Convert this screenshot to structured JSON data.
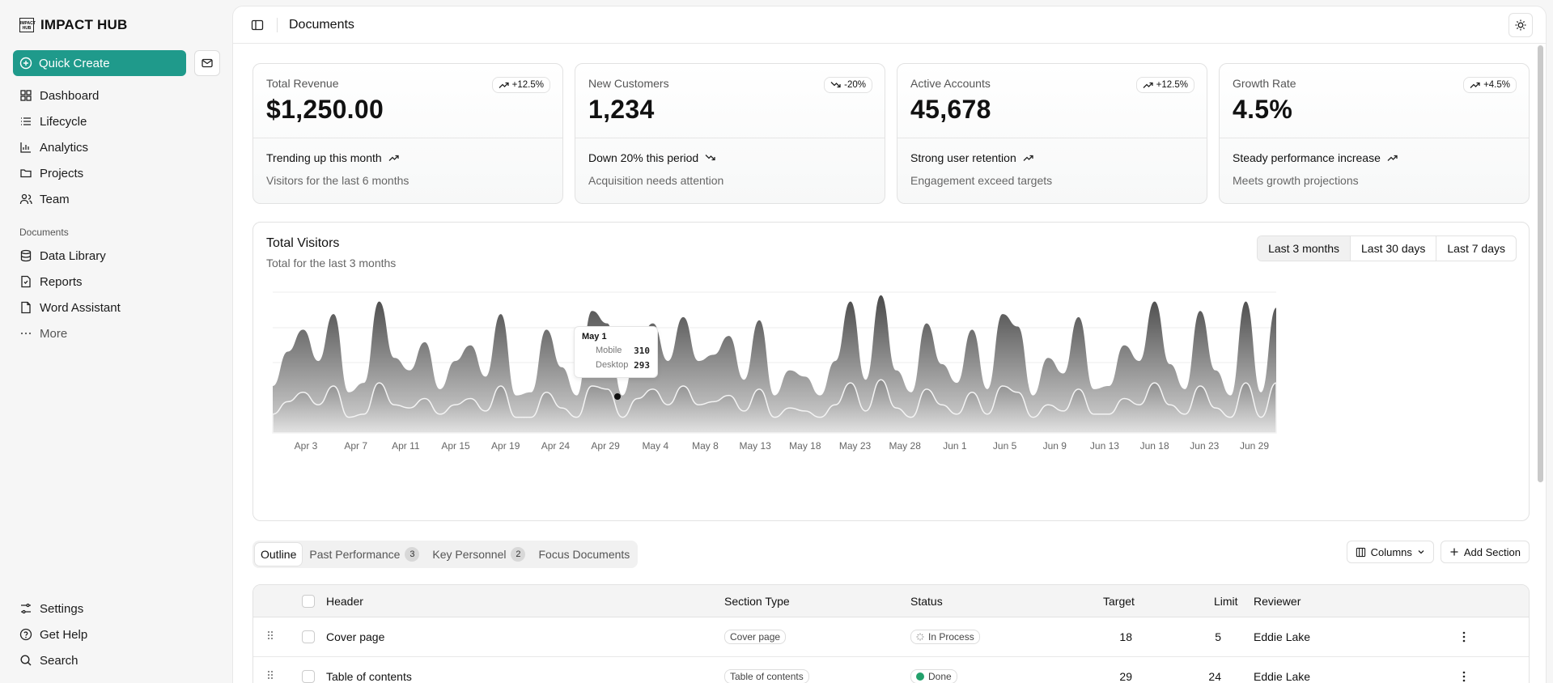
{
  "brand": {
    "name": "IMPACT HUB",
    "logo_text": "IMPACT HUB"
  },
  "sidebar": {
    "quick_create": "Quick Create",
    "items": [
      {
        "label": "Dashboard",
        "icon": "dashboard-icon"
      },
      {
        "label": "Lifecycle",
        "icon": "list-icon"
      },
      {
        "label": "Analytics",
        "icon": "chart-icon"
      },
      {
        "label": "Projects",
        "icon": "folder-icon"
      },
      {
        "label": "Team",
        "icon": "users-icon"
      }
    ],
    "documents_label": "Documents",
    "doc_items": [
      {
        "label": "Data Library",
        "icon": "database-icon"
      },
      {
        "label": "Reports",
        "icon": "report-icon"
      },
      {
        "label": "Word Assistant",
        "icon": "file-icon"
      },
      {
        "label": "More",
        "icon": "ellipsis-icon"
      }
    ],
    "bottom_items": [
      {
        "label": "Settings",
        "icon": "settings-icon"
      },
      {
        "label": "Get Help",
        "icon": "help-icon"
      },
      {
        "label": "Search",
        "icon": "search-icon"
      }
    ]
  },
  "header": {
    "title": "Documents"
  },
  "cards": [
    {
      "label": "Total Revenue",
      "value": "$1,250.00",
      "badge": "+12.5%",
      "trend": "up",
      "line1": "Trending up this month",
      "line2": "Visitors for the last 6 months"
    },
    {
      "label": "New Customers",
      "value": "1,234",
      "badge": "-20%",
      "trend": "down",
      "line1": "Down 20% this period",
      "line2": "Acquisition needs attention"
    },
    {
      "label": "Active Accounts",
      "value": "45,678",
      "badge": "+12.5%",
      "trend": "up",
      "line1": "Strong user retention",
      "line2": "Engagement exceed targets"
    },
    {
      "label": "Growth Rate",
      "value": "4.5%",
      "badge": "+4.5%",
      "trend": "up",
      "line1": "Steady performance increase",
      "line2": "Meets growth projections"
    }
  ],
  "chart": {
    "title": "Total Visitors",
    "subtitle": "Total for the last 3 months",
    "ranges": [
      "Last 3 months",
      "Last 30 days",
      "Last 7 days"
    ],
    "selected_range": "Last 3 months",
    "tooltip": {
      "date": "May 1",
      "mobile_label": "Mobile",
      "mobile_value": "310",
      "desktop_label": "Desktop",
      "desktop_value": "293"
    }
  },
  "chart_data": {
    "type": "area",
    "x_ticks": [
      "Apr 3",
      "Apr 7",
      "Apr 11",
      "Apr 15",
      "Apr 19",
      "Apr 24",
      "Apr 29",
      "May 4",
      "May 8",
      "May 13",
      "May 18",
      "May 23",
      "May 28",
      "Jun 1",
      "Jun 5",
      "Jun 9",
      "Jun 13",
      "Jun 18",
      "Jun 23",
      "Jun 29"
    ],
    "series": [
      {
        "name": "Desktop",
        "values": [
          150,
          260,
          330,
          230,
          380,
          130,
          160,
          420,
          240,
          200,
          290,
          140,
          230,
          280,
          180,
          380,
          120,
          130,
          330,
          210,
          120,
          390,
          350,
          120,
          280,
          350,
          230,
          370,
          230,
          250,
          310,
          170,
          360,
          120,
          200,
          180,
          120,
          230,
          420,
          170,
          440,
          200,
          130,
          350,
          220,
          160,
          330,
          140,
          380,
          340,
          120,
          240,
          190,
          370,
          140,
          150,
          280,
          230,
          420,
          220,
          140,
          390,
          200,
          120,
          420,
          130,
          400
        ]
      },
      {
        "name": "Mobile",
        "values": [
          60,
          100,
          130,
          90,
          150,
          50,
          60,
          160,
          90,
          80,
          110,
          60,
          90,
          110,
          70,
          150,
          50,
          50,
          130,
          80,
          50,
          150,
          140,
          50,
          110,
          140,
          90,
          150,
          90,
          100,
          120,
          70,
          140,
          50,
          80,
          70,
          50,
          90,
          160,
          70,
          170,
          80,
          50,
          140,
          90,
          60,
          130,
          60,
          150,
          130,
          50,
          90,
          70,
          140,
          60,
          60,
          110,
          90,
          160,
          90,
          60,
          150,
          80,
          50,
          160,
          50,
          160
        ]
      }
    ],
    "grid": true,
    "legend": "none"
  },
  "tabs": [
    {
      "label": "Outline",
      "count": null
    },
    {
      "label": "Past Performance",
      "count": "3"
    },
    {
      "label": "Key Personnel",
      "count": "2"
    },
    {
      "label": "Focus Documents",
      "count": null
    }
  ],
  "table_actions": {
    "columns": "Columns",
    "add_section": "Add Section"
  },
  "table": {
    "headers": {
      "header": "Header",
      "section_type": "Section Type",
      "status": "Status",
      "target": "Target",
      "limit": "Limit",
      "reviewer": "Reviewer"
    },
    "rows": [
      {
        "header": "Cover page",
        "section_type": "Cover page",
        "status": "In Process",
        "target": "18",
        "limit": "5",
        "reviewer": "Eddie Lake"
      },
      {
        "header": "Table of contents",
        "section_type": "Table of contents",
        "status": "Done",
        "target": "29",
        "limit": "24",
        "reviewer": "Eddie Lake"
      }
    ]
  }
}
